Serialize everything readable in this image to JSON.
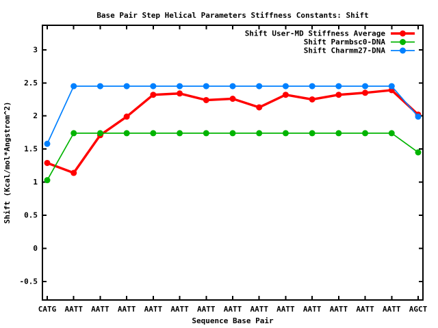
{
  "window": {
    "background": "#ffffff",
    "text_color": "#000000",
    "border_color": "#000000"
  },
  "chart_data": {
    "type": "line",
    "title": "Base Pair Step Helical Parameters Stiffness Constants: Shift",
    "xlabel": "Sequence Base Pair",
    "ylabel": "Shift (Kcal/mol*Angstrom^2)",
    "grid": false,
    "legend_position": "top-right-inside",
    "categories": [
      "CATG",
      "AATT",
      "AATT",
      "AATT",
      "AATT",
      "AATT",
      "AATT",
      "AATT",
      "AATT",
      "AATT",
      "AATT",
      "AATT",
      "AATT",
      "AATT",
      "AGCT"
    ],
    "yticks": [
      -0.5,
      0,
      0.5,
      1,
      1.5,
      2,
      2.5,
      3
    ],
    "ytick_labels": [
      "-0.5",
      "0",
      "0.5",
      "1",
      "1.5",
      "2",
      "2.5",
      "3"
    ],
    "ylim": [
      -0.78,
      3.37
    ],
    "series": [
      {
        "name": "Shift User-MD Stiffness Average",
        "color": "#ff0000",
        "line_width": 3.5,
        "marker": "filled-circle",
        "values": [
          1.29,
          1.14,
          1.71,
          1.99,
          2.32,
          2.34,
          2.24,
          2.26,
          2.13,
          2.32,
          2.25,
          2.32,
          2.35,
          2.39,
          2.02
        ]
      },
      {
        "name": "Shift Parmbsc0-DNA",
        "color": "#00b400",
        "line_width": 1.7,
        "marker": "filled-circle",
        "values": [
          1.03,
          1.74,
          1.74,
          1.74,
          1.74,
          1.74,
          1.74,
          1.74,
          1.74,
          1.74,
          1.74,
          1.74,
          1.74,
          1.74,
          1.45
        ]
      },
      {
        "name": "Shift Charmm27-DNA",
        "color": "#0080ff",
        "line_width": 1.7,
        "marker": "filled-circle",
        "values": [
          1.58,
          2.45,
          2.45,
          2.45,
          2.45,
          2.45,
          2.45,
          2.45,
          2.45,
          2.45,
          2.45,
          2.45,
          2.45,
          2.45,
          1.99
        ]
      }
    ]
  }
}
